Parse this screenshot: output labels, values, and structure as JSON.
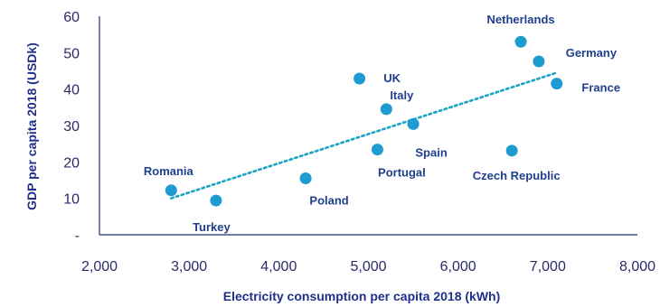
{
  "chart_data": {
    "type": "scatter",
    "xlabel": "Electricity consumption per capita 2018 (kWh)",
    "ylabel": "GDP per capita 2018 (USDk)",
    "xlim": [
      2000,
      8000
    ],
    "ylim": [
      0,
      60
    ],
    "x_ticks": [
      "2,000",
      "3,000",
      "4,000",
      "5,000",
      "6,000",
      "7,000",
      "8,000"
    ],
    "y_ticks": [
      "-",
      "10",
      "20",
      "30",
      "40",
      "50",
      "60"
    ],
    "grid": false,
    "trendline": {
      "style": "dotted",
      "x": [
        2800,
        7100
      ],
      "y": [
        10,
        44.5
      ]
    },
    "points": [
      {
        "label": "Romania",
        "x": 2800,
        "y": 12.2
      },
      {
        "label": "Turkey",
        "x": 3300,
        "y": 9.4
      },
      {
        "label": "Poland",
        "x": 4300,
        "y": 15.5
      },
      {
        "label": "UK",
        "x": 4900,
        "y": 42.9
      },
      {
        "label": "Portugal",
        "x": 5100,
        "y": 23.4
      },
      {
        "label": "Italy",
        "x": 5200,
        "y": 34.5
      },
      {
        "label": "Spain",
        "x": 5500,
        "y": 30.4
      },
      {
        "label": "Czech Republic",
        "x": 6600,
        "y": 23.1
      },
      {
        "label": "Netherlands",
        "x": 6700,
        "y": 53.0
      },
      {
        "label": "Germany",
        "x": 6900,
        "y": 47.6
      },
      {
        "label": "France",
        "x": 7100,
        "y": 41.5
      }
    ],
    "colors": {
      "marker": "#1e9bd1",
      "trend": "#1aa3c4",
      "label": "#1f3f8f"
    }
  }
}
